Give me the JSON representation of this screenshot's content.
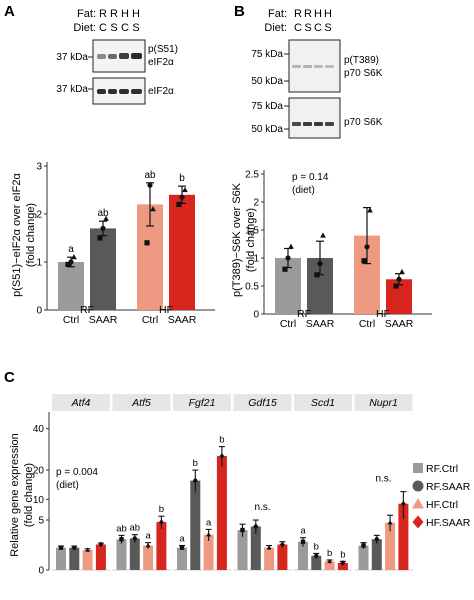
{
  "colors": {
    "rf_ctrl": "#9b9b9b",
    "rf_saar": "#595959",
    "hf_ctrl": "#ee9a82",
    "hf_saar": "#d7261e",
    "strip": "#e6e6e6",
    "axis": "#333333"
  },
  "panel_a": {
    "letter": "A",
    "blot_header": {
      "fat_label": "Fat:",
      "diet_label": "Diet:",
      "fat": [
        "R",
        "R",
        "H",
        "H"
      ],
      "diet": [
        "C",
        "S",
        "C",
        "S"
      ]
    },
    "blots": [
      {
        "kda": "37 kDa",
        "label_line1": "p(S51)",
        "label_line2": "eIF2α"
      },
      {
        "kda": "37 kDa",
        "label_line1": "eIF2α",
        "label_line2": ""
      }
    ]
  },
  "panel_b": {
    "letter": "B",
    "blot_header": {
      "fat_label": "Fat:",
      "diet_label": "Diet:",
      "fat": [
        "R",
        "R",
        "H",
        "H"
      ],
      "diet": [
        "C",
        "S",
        "C",
        "S"
      ]
    },
    "blots": [
      {
        "kda_top": "75 kDa",
        "kda_bottom": "50 kDa",
        "label_line1": "p(T389)",
        "label_line2": "p70 S6K"
      },
      {
        "kda_top": "75 kDa",
        "kda_bottom": "50 kDa",
        "label_line1": "p70 S6K",
        "label_line2": ""
      }
    ]
  },
  "panel_c": {
    "letter": "C"
  },
  "chart_data": [
    {
      "type": "bar",
      "panel": "A",
      "ylabel_line1": "p(S51)−eIF2α over eIF2α",
      "ylabel_line2": "(fold change)",
      "ylim": [
        0,
        3
      ],
      "yticks": [
        0,
        1,
        2,
        3
      ],
      "categories": [
        "Ctrl",
        "SAAR",
        "Ctrl",
        "SAAR"
      ],
      "groups": [
        "RF",
        "HF"
      ],
      "values": [
        1.0,
        1.7,
        2.2,
        2.4
      ],
      "errors": [
        0.1,
        0.15,
        0.45,
        0.18
      ],
      "letters": [
        "a",
        "ab",
        "ab",
        "b"
      ],
      "points": [
        [
          0.95,
          1.0,
          1.1
        ],
        [
          1.5,
          1.7,
          1.9
        ],
        [
          1.4,
          2.6,
          2.1
        ],
        [
          2.2,
          2.35,
          2.5
        ]
      ],
      "annotation": ""
    },
    {
      "type": "bar",
      "panel": "B",
      "ylabel_line1": "p(T389)−S6K over S6K",
      "ylabel_line2": "(fold change)",
      "ylim": [
        0,
        2.5
      ],
      "yticks": [
        0,
        0.5,
        1,
        1.5,
        2,
        2.5
      ],
      "categories": [
        "Ctrl",
        "SAAR",
        "Ctrl",
        "SAAR"
      ],
      "groups": [
        "RF",
        "HF"
      ],
      "values": [
        1.0,
        1.0,
        1.4,
        0.62
      ],
      "errors": [
        0.17,
        0.3,
        0.5,
        0.1
      ],
      "letters": [
        "",
        "",
        "",
        ""
      ],
      "points": [
        [
          0.8,
          1.0,
          1.2
        ],
        [
          0.7,
          0.9,
          1.4
        ],
        [
          0.95,
          1.2,
          1.85
        ],
        [
          0.5,
          0.62,
          0.75
        ]
      ],
      "annotation_line1": "p = 0.14",
      "annotation_line2": "(diet)"
    },
    {
      "type": "bar",
      "panel": "C",
      "ylabel_line1": "Relative gene expression",
      "ylabel_line2": "(fold change)",
      "yscale": "sqrt",
      "ylim": [
        0,
        50
      ],
      "yticks": [
        0,
        5,
        10,
        20,
        40
      ],
      "facets": [
        {
          "gene": "Atf4",
          "values": [
            1.0,
            1.0,
            0.8,
            1.3
          ],
          "errors": [
            0.15,
            0.15,
            0.1,
            0.15
          ],
          "letters": [
            "",
            "",
            "",
            ""
          ],
          "annotation": ""
        },
        {
          "gene": "Atf5",
          "values": [
            1.9,
            2.0,
            1.2,
            4.6
          ],
          "errors": [
            0.5,
            0.5,
            0.3,
            1.2
          ],
          "letters": [
            "ab",
            "ab",
            "a",
            "b"
          ],
          "annotation": ""
        },
        {
          "gene": "Fgf21",
          "values": [
            1.0,
            16.0,
            2.5,
            26.0
          ],
          "errors": [
            0.2,
            4.0,
            0.8,
            4.5
          ],
          "letters": [
            "a",
            "b",
            "a",
            "b"
          ],
          "annotation": ""
        },
        {
          "gene": "Gdf15",
          "values": [
            3.2,
            3.8,
            1.0,
            1.3
          ],
          "errors": [
            1.0,
            1.2,
            0.2,
            0.3
          ],
          "letters": [
            "",
            "",
            "",
            ""
          ],
          "annotation": "n.s."
        },
        {
          "gene": "Scd1",
          "values": [
            1.6,
            0.4,
            0.15,
            0.1
          ],
          "errors": [
            0.5,
            0.15,
            0.05,
            0.05
          ],
          "letters": [
            "a",
            "b",
            "b",
            "b"
          ],
          "annotation": ""
        },
        {
          "gene": "Nupr1",
          "values": [
            1.2,
            1.9,
            4.5,
            8.8
          ],
          "errors": [
            0.3,
            0.5,
            1.5,
            3.5
          ],
          "letters": [
            "",
            "",
            "",
            ""
          ],
          "annotation": "n.s."
        }
      ],
      "annotation_line1": "p = 0.004",
      "annotation_line2": "(diet)",
      "legend": [
        "RF.Ctrl",
        "RF.SAAR",
        "HF.Ctrl",
        "HF.SAAR"
      ],
      "legend_position": "right"
    }
  ]
}
